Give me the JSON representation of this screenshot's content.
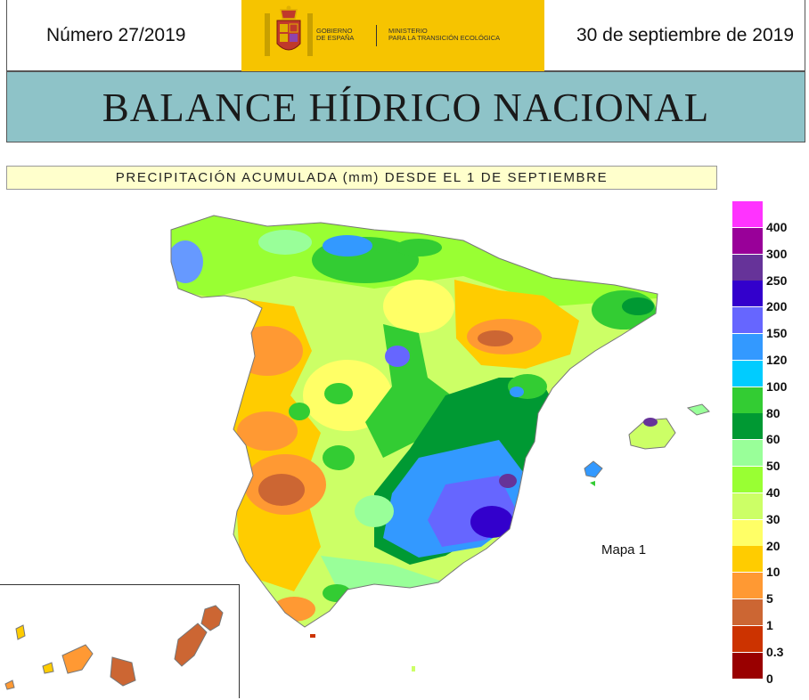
{
  "header": {
    "issue": "Número 27/2019",
    "date": "30 de septiembre de 2019",
    "gov_logo_line1": "GOBIERNO\nDE ESPAÑA",
    "gov_logo_line2": "MINISTERIO\nPARA LA TRANSICIÓN ECOLÓGICA"
  },
  "title": "BALANCE HÍDRICO NACIONAL",
  "subtitle": "PRECIPITACIÓN ACUMULADA (mm) DESDE EL 1 DE SEPTIEMBRE",
  "map_label": "Mapa 1",
  "legend": [
    {
      "label": "400",
      "color": "#ff33ff"
    },
    {
      "label": "300",
      "color": "#990099"
    },
    {
      "label": "250",
      "color": "#663399"
    },
    {
      "label": "200",
      "color": "#3300cc"
    },
    {
      "label": "150",
      "color": "#6666ff"
    },
    {
      "label": "120",
      "color": "#3399ff"
    },
    {
      "label": "100",
      "color": "#00ccff"
    },
    {
      "label": "80",
      "color": "#33cc33"
    },
    {
      "label": "60",
      "color": "#009933"
    },
    {
      "label": "50",
      "color": "#99ff99"
    },
    {
      "label": "40",
      "color": "#99ff33"
    },
    {
      "label": "30",
      "color": "#ccff66"
    },
    {
      "label": "20",
      "color": "#ffff66"
    },
    {
      "label": "10",
      "color": "#ffcc00"
    },
    {
      "label": "5",
      "color": "#ff9933"
    },
    {
      "label": "1",
      "color": "#cc6633"
    },
    {
      "label": "0.3",
      "color": "#cc3300"
    },
    {
      "label": "0",
      "color": "#990000"
    }
  ]
}
